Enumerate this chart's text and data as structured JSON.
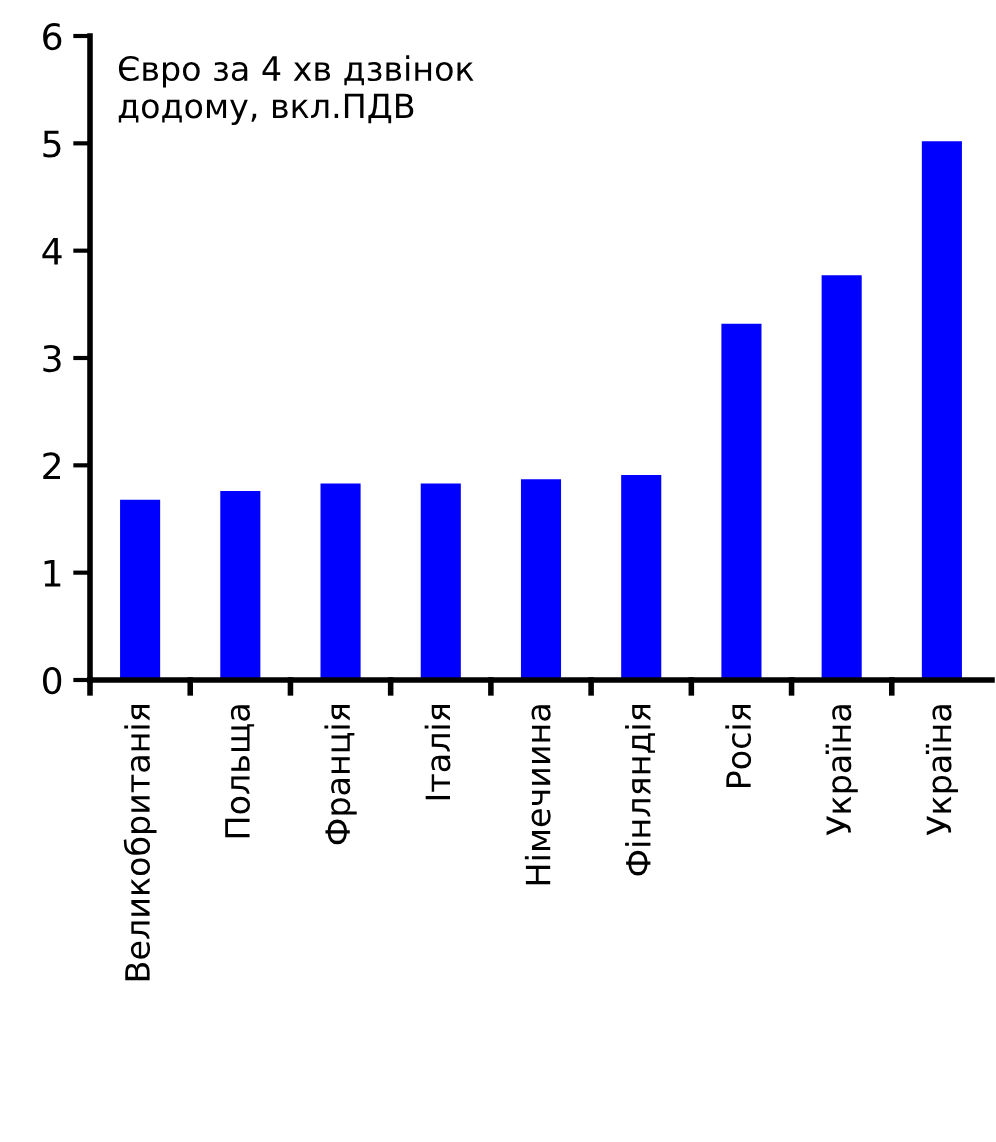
{
  "chart_data": {
    "type": "bar",
    "categories": [
      "Великобританія",
      "Польща",
      "Франція",
      "Італія",
      "Німечиина",
      "Фінляндія",
      "Росія",
      "Україна",
      "Україна"
    ],
    "values": [
      1.68,
      1.76,
      1.83,
      1.83,
      1.87,
      1.91,
      3.32,
      3.77,
      5.02
    ],
    "color": "#0000ff",
    "ylim": [
      0,
      6
    ],
    "yticks": [
      0,
      1,
      2,
      3,
      4,
      5,
      6
    ],
    "annotations": [
      "Євро за 4 хв дзвінок\nдодому, вкл.ПДВ"
    ]
  }
}
